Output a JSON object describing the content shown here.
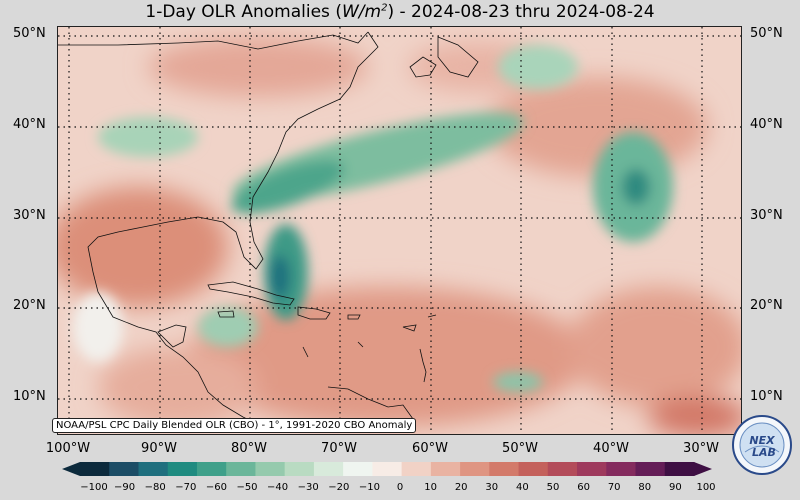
{
  "title": {
    "prefix": "1-Day OLR Anomalies (",
    "unit_base": "W/m",
    "unit_exp": "2",
    "suffix": ") - 2024-08-23 thru 2024-08-24"
  },
  "credit": "NOAA/PSL CPC Daily Blended OLR (CBO) - 1°, 1991-2020 CBO Anomaly",
  "lat_labels": [
    "50°N",
    "40°N",
    "30°N",
    "20°N",
    "10°N"
  ],
  "lon_labels": [
    "100°W",
    "90°W",
    "80°W",
    "70°W",
    "60°W",
    "50°W",
    "40°W",
    "30°W"
  ],
  "colorbar": {
    "ticks": [
      "−100",
      "−90",
      "−80",
      "−70",
      "−60",
      "−50",
      "−40",
      "−30",
      "−20",
      "−10",
      "0",
      "10",
      "20",
      "30",
      "40",
      "50",
      "60",
      "70",
      "80",
      "90",
      "100"
    ],
    "colors": [
      "#0c2a3c",
      "#1c4d66",
      "#1f6f7e",
      "#1f8b80",
      "#3fa08a",
      "#6bb69a",
      "#95caad",
      "#b9dbc2",
      "#d8eadb",
      "#eff5f0",
      "#f7ece6",
      "#f1d2c6",
      "#e9b3a2",
      "#df9582",
      "#d37a6a",
      "#c4615c",
      "#b34c5a",
      "#9e3a5d",
      "#842b5e",
      "#641d57",
      "#3e0f43"
    ]
  },
  "logo": {
    "text_top": "NEX",
    "text_bottom": "LAB",
    "icon": "nexlab-globe-logo"
  },
  "colors": {
    "background": "#d9d9d9",
    "neutral": "#f7ece6",
    "positive": "#e2a08c",
    "negative": "#3a9a85"
  }
}
